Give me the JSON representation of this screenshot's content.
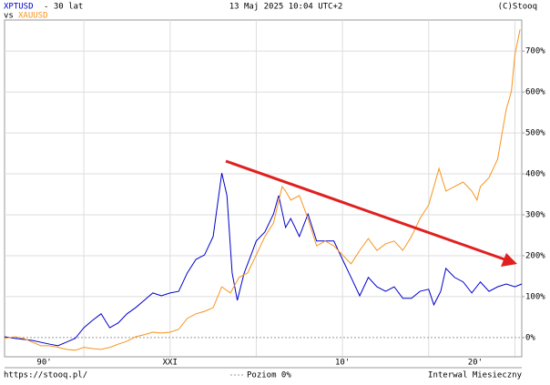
{
  "chart_data": {
    "type": "line",
    "period": "- 30 lat",
    "vs": "vs",
    "date": "13 Maj 2025 10:04 UTC+2",
    "copyright": "(C)Stooq",
    "source_url": "https://stooq.pl/",
    "zero_line_label": "Poziom 0%",
    "interval": "Interwal Miesieczny",
    "xlim": [
      1995.4,
      2025.4
    ],
    "ylim": [
      -47,
      776
    ],
    "xgrid": [
      2000,
      2005,
      2010,
      2015,
      2020,
      2025
    ],
    "xticks": [
      {
        "value": 1997.7,
        "label": "90'"
      },
      {
        "value": 2005,
        "label": "XXI"
      },
      {
        "value": 2015,
        "label": "10'"
      },
      {
        "value": 2022.7,
        "label": "20'"
      }
    ],
    "yticks": [
      {
        "value": 0,
        "label": "0%"
      },
      {
        "value": 100,
        "label": "100%"
      },
      {
        "value": 200,
        "label": "200%"
      },
      {
        "value": 300,
        "label": "300%"
      },
      {
        "value": 400,
        "label": "400%"
      },
      {
        "value": 500,
        "label": "500%"
      },
      {
        "value": 600,
        "label": "600%"
      },
      {
        "value": 700,
        "label": "700%"
      }
    ],
    "grid": true,
    "series": [
      {
        "name": "XPTUSD",
        "color": "#0000cc",
        "x": [
          1995.4,
          1996,
          1997,
          1998,
          1998.5,
          1999,
          1999.5,
          2000,
          2000.5,
          2001,
          2001.5,
          2002,
          2002.5,
          2003,
          2003.5,
          2004,
          2004.5,
          2005,
          2005.5,
          2006,
          2006.5,
          2007,
          2007.5,
          2008,
          2008.3,
          2008.6,
          2008.9,
          2009.3,
          2009.7,
          2010,
          2010.5,
          2011,
          2011.3,
          2011.7,
          2012,
          2012.5,
          2013,
          2013.5,
          2014,
          2014.5,
          2015,
          2015.5,
          2016,
          2016.5,
          2017,
          2017.5,
          2018,
          2018.5,
          2019,
          2019.5,
          2020,
          2020.3,
          2020.7,
          2021,
          2021.5,
          2022,
          2022.5,
          2023,
          2023.5,
          2024,
          2024.5,
          2025,
          2025.4
        ],
        "values": [
          2,
          -2,
          -7,
          -16,
          -20,
          -11,
          -2,
          24,
          42,
          58,
          24,
          36,
          58,
          73,
          91,
          109,
          102,
          109,
          113,
          158,
          191,
          202,
          247,
          402,
          347,
          158,
          91,
          158,
          202,
          236,
          258,
          302,
          347,
          269,
          291,
          247,
          302,
          236,
          236,
          236,
          191,
          147,
          102,
          147,
          124,
          113,
          124,
          96,
          96,
          113,
          118,
          80,
          113,
          169,
          147,
          136,
          109,
          136,
          113,
          124,
          131,
          124,
          131
        ]
      },
      {
        "name": "XAUUSD",
        "color": "#f7941d",
        "x": [
          1995.4,
          1996,
          1996.5,
          1997,
          1997.5,
          1998,
          1998.5,
          1999,
          1999.5,
          2000,
          2000.5,
          2001,
          2001.5,
          2002,
          2002.5,
          2003,
          2003.5,
          2004,
          2004.5,
          2005,
          2005.5,
          2006,
          2006.5,
          2007,
          2007.5,
          2008,
          2008.5,
          2009,
          2009.5,
          2010,
          2010.5,
          2011,
          2011.5,
          2011.7,
          2012,
          2012.5,
          2013,
          2013.5,
          2014,
          2014.5,
          2015,
          2015.5,
          2016,
          2016.5,
          2017,
          2017.5,
          2018,
          2018.5,
          2019,
          2019.5,
          2020,
          2020.6,
          2021,
          2021.5,
          2022,
          2022.5,
          2022.8,
          2023,
          2023.5,
          2024,
          2024.5,
          2024.8,
          2025,
          2025.3
        ],
        "values": [
          -2,
          2,
          -2,
          -11,
          -20,
          -20,
          -24,
          -29,
          -31,
          -24,
          -27,
          -29,
          -24,
          -16,
          -9,
          2,
          7,
          13,
          11,
          13,
          20,
          47,
          58,
          64,
          73,
          124,
          109,
          147,
          158,
          202,
          247,
          280,
          369,
          358,
          336,
          347,
          291,
          224,
          236,
          224,
          202,
          180,
          213,
          242,
          213,
          229,
          236,
          213,
          247,
          291,
          324,
          413,
          358,
          369,
          380,
          358,
          336,
          369,
          391,
          436,
          558,
          602,
          691,
          753
        ]
      }
    ]
  }
}
